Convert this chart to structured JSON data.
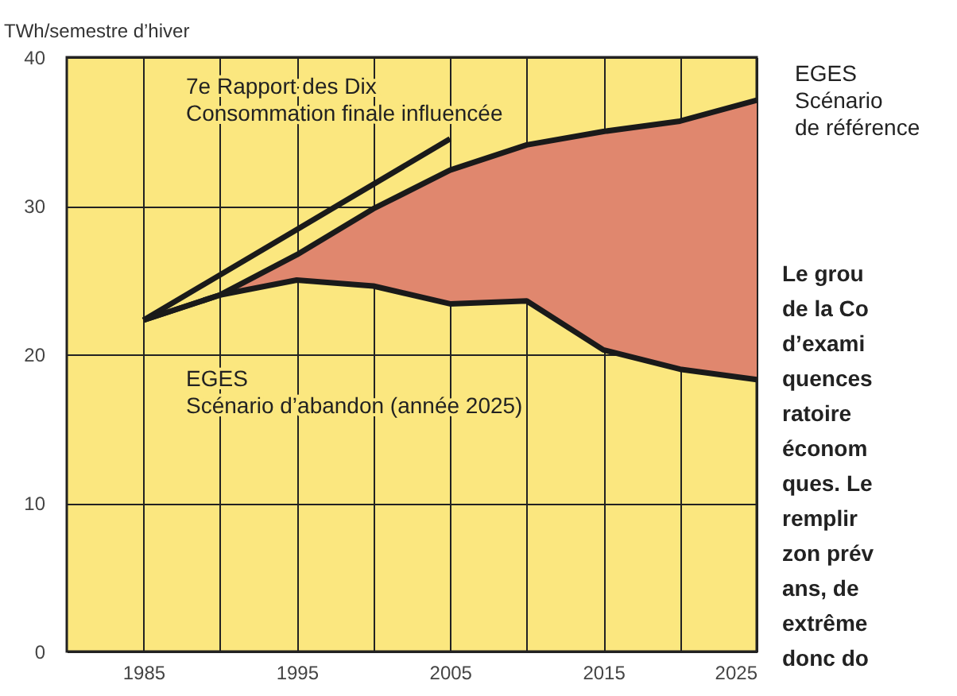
{
  "chart_data": {
    "type": "line",
    "ylabel": "TWh/semestre d’hiver",
    "x": [
      1985,
      1990,
      1995,
      2000,
      2005,
      2010,
      2015,
      2020,
      2025
    ],
    "series": [
      {
        "name": "7e Rapport des Dix\nConsommation finale influencée",
        "color": "#1a1a1a",
        "x": [
          1985,
          1995,
          2005
        ],
        "values": [
          22.3,
          28.4,
          34.5
        ]
      },
      {
        "name": "EGES\nScénario\nde référence",
        "color": "#1a1a1a",
        "values": [
          22.3,
          24.0,
          26.7,
          29.8,
          32.4,
          34.1,
          35.0,
          35.7,
          37.1
        ]
      },
      {
        "type": "area",
        "color": "#e0876e",
        "x": [
          1990,
          1995,
          2000,
          2005,
          2010,
          2015,
          2020,
          2025
        ],
        "values": [
          24.0,
          26.7,
          29.8,
          32.4,
          34.1,
          35.0,
          35.7,
          37.1
        ]
      },
      {
        "name": "EGES\nScénario d’abandon (année 2025)",
        "color": "#1a1a1a",
        "values": [
          22.3,
          24.0,
          25.0,
          24.6,
          23.4,
          23.6,
          20.3,
          19.0,
          18.3
        ]
      }
    ],
    "xlim": [
      1980,
      2025
    ],
    "xticks": [
      1985,
      {
        "value": 1990,
        "label": null
      },
      1995,
      {
        "value": 2000,
        "label": null
      },
      2005,
      {
        "value": 2010,
        "label": null
      },
      2015,
      {
        "value": 2020,
        "label": null
      },
      2025
    ],
    "ylim": [
      0,
      40
    ],
    "yticks": [
      0,
      10,
      20,
      30,
      40
    ],
    "grid": true,
    "marker": "none",
    "line_style": "solid",
    "annotations": [
      "Le grou\nde la Co\nd’exami\nquences\nratoire\néconom\nques. Le\nremplir\nzon prév\nans, de\nextrême\ndonc do"
    ]
  }
}
